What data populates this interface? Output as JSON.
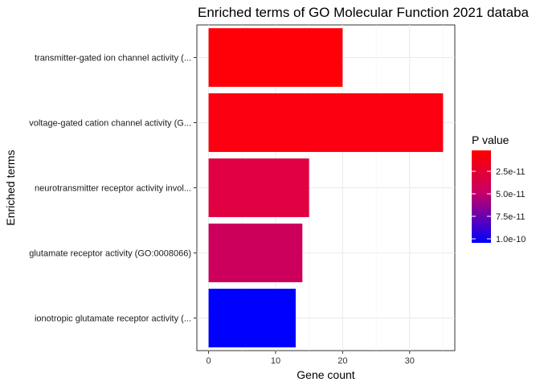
{
  "chart_data": {
    "type": "bar",
    "orientation": "horizontal",
    "title": "Enriched terms of GO Molecular Function 2021 databa",
    "xlabel": "Gene count",
    "ylabel": "Enriched terms",
    "xlim": [
      -1.75,
      36.75
    ],
    "xticks": [
      "0",
      "10",
      "20",
      "30"
    ],
    "xtick_values": [
      0,
      10,
      20,
      30
    ],
    "categories": [
      "transmitter-gated ion channel activity (...",
      "voltage-gated cation channel activity (G...",
      "neurotransmitter receptor activity invol...",
      "glutamate receptor activity (GO:0008066)",
      "ionotropic glutamate receptor activity (..."
    ],
    "values": [
      20,
      35,
      15,
      14,
      13
    ],
    "bar_colors": [
      "#ff0008",
      "#fc0011",
      "#e10042",
      "#cc005c",
      "#0000ff"
    ],
    "grid": true,
    "legend": {
      "title": "P value",
      "placement": "right",
      "labels": [
        "2.5e-11",
        "5.0e-11",
        "7.5e-11",
        "1.0e-10"
      ],
      "gradient_top": "#ff0000",
      "gradient_mid": "#c80064",
      "gradient_bottom": "#0000ff"
    }
  }
}
